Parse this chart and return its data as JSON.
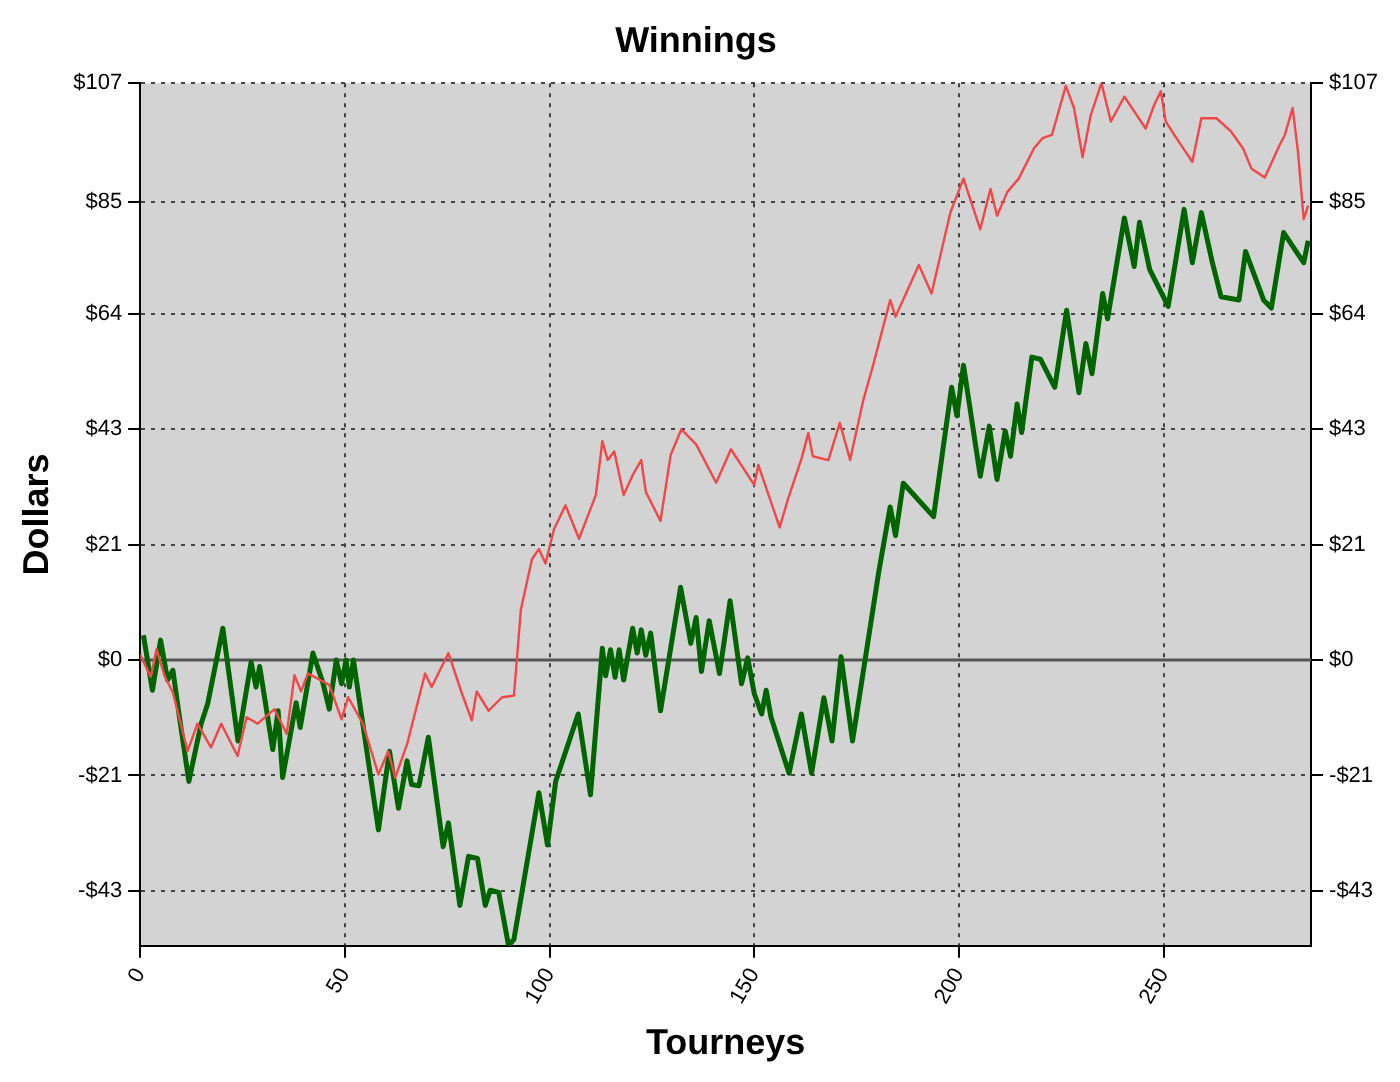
{
  "chart_data": {
    "type": "line",
    "title": "Winnings",
    "xlabel": "Tourneys",
    "ylabel": "Dollars",
    "xlim": [
      0,
      286
    ],
    "xticks": [
      0,
      50,
      100,
      150,
      200,
      250
    ],
    "ylim": [
      -53,
      107
    ],
    "yticks": [
      {
        "value": -42.8,
        "label": "-$43"
      },
      {
        "value": -21.4,
        "label": "-$21"
      },
      {
        "value": 0,
        "label": "$0"
      },
      {
        "value": 21.4,
        "label": "$21"
      },
      {
        "value": 42.8,
        "label": "$43"
      },
      {
        "value": 64.2,
        "label": "$64"
      },
      {
        "value": 85,
        "label": "$85"
      },
      {
        "value": 107,
        "label": "$107"
      }
    ],
    "y2lim": [
      -53,
      107
    ],
    "y2ticks": [
      {
        "value": -42.8,
        "label": "-$43"
      },
      {
        "value": -21.4,
        "label": "-$21"
      },
      {
        "value": 0,
        "label": "$0"
      },
      {
        "value": 21.4,
        "label": "$21"
      },
      {
        "value": 42.8,
        "label": "$43"
      },
      {
        "value": 64.2,
        "label": "$64"
      },
      {
        "value": 85,
        "label": "$85"
      },
      {
        "value": 107,
        "label": "$107"
      }
    ],
    "grid": true,
    "legend": false,
    "marker": "none",
    "line_style": "solid",
    "ref_lines": [
      {
        "axis": "y",
        "value": 0,
        "color": "#555555"
      }
    ],
    "series": [
      {
        "color": "#f04848",
        "x": [
          0,
          2.6,
          4,
          6,
          8,
          11.6,
          14,
          17.3,
          19.8,
          23.8,
          26,
          28.7,
          32.8,
          35.8,
          37.7,
          39.3,
          41,
          46.2,
          49.2,
          50.8,
          54.4,
          58.2,
          60.6,
          62.3,
          65.2,
          69.6,
          71.2,
          75.3,
          78.6,
          81,
          82.2,
          85.1,
          88.4,
          91.3,
          93,
          95.7,
          97.4,
          99,
          101.1,
          103.9,
          107.2,
          111.3,
          112.9,
          114.2,
          115.8,
          118.1,
          120.3,
          122.4,
          123.5,
          127.1,
          129.6,
          132.2,
          135.8,
          140.7,
          144.3,
          150,
          151,
          156.2,
          158.3,
          161.6,
          163.2,
          164.3,
          168.1,
          170.9,
          173.4,
          176.6,
          179.1,
          183.2,
          184.5,
          190.2,
          193.3,
          197.9,
          201.1,
          205.2,
          207.7,
          209.3,
          211.8,
          214.6,
          218.3,
          220.4,
          222.7,
          226.1,
          228.1,
          230.2,
          232.2,
          234.8,
          237.1,
          240.4,
          245.6,
          247.7,
          249.3,
          250.5,
          252.6,
          257,
          259.2,
          262.9,
          266.5,
          269.4,
          271.4,
          274.7,
          278.3,
          279.6,
          281.5,
          282.8,
          284.2,
          285.3
        ],
        "values": [
          1,
          -3.1,
          2,
          -3,
          -6,
          -16.9,
          -11.8,
          -16.2,
          -11.8,
          -17.8,
          -10.6,
          -11.8,
          -9.1,
          -13.7,
          -2.8,
          -5.8,
          -2.5,
          -4.6,
          -11,
          -6.9,
          -11.8,
          -21.2,
          -16.9,
          -21.8,
          -15.6,
          -2.5,
          -5,
          1.3,
          -6.2,
          -11.2,
          -5.8,
          -9.4,
          -6.9,
          -6.6,
          9.4,
          18.7,
          20.6,
          17.9,
          24.3,
          28.7,
          22.5,
          30.6,
          40.6,
          37.1,
          38.7,
          30.6,
          34.3,
          37.1,
          31.2,
          25.8,
          38.1,
          42.8,
          40,
          32.9,
          39.1,
          32.5,
          36.2,
          24.6,
          30,
          37.5,
          42.1,
          37.8,
          37.1,
          44,
          37.1,
          48.1,
          54.9,
          66.8,
          63.7,
          73.3,
          68,
          83,
          89.3,
          79.9,
          87.4,
          82.4,
          86.8,
          89.3,
          94.9,
          96.8,
          97.4,
          106.5,
          102.4,
          93.3,
          101.1,
          107,
          99.9,
          104.5,
          98.6,
          103,
          105.5,
          99.9,
          97.4,
          92.4,
          100.5,
          100.5,
          98,
          94.9,
          91.2,
          89.5,
          95.5,
          97.4,
          102.4,
          94.3,
          81.8,
          84.3
        ]
      },
      {
        "color": "#006400",
        "x": [
          0.8,
          3,
          5,
          6.7,
          8,
          9.6,
          11.9,
          14.9,
          16.5,
          20.2,
          23.9,
          27.1,
          28.3,
          29.2,
          32.4,
          33.7,
          34.8,
          38.1,
          39.1,
          42.2,
          44.6,
          46.2,
          47.9,
          49.2,
          50.3,
          51.1,
          52.1,
          58.2,
          60.9,
          63.1,
          65.2,
          66.3,
          68.1,
          70.4,
          74,
          75.3,
          78.1,
          80.2,
          82.4,
          84.3,
          85.5,
          87.6,
          90,
          91.3,
          97.4,
          99.5,
          101.5,
          107,
          110,
          112.9,
          113.7,
          114.9,
          116,
          117,
          118.1,
          120.3,
          121.4,
          122.4,
          123.5,
          124.7,
          127.1,
          132,
          134.5,
          135.8,
          137.1,
          139,
          141.5,
          144.1,
          146.9,
          148.4,
          150,
          151.8,
          152.9,
          154.1,
          158.5,
          161.5,
          164,
          167,
          169,
          171.2,
          174,
          180.4,
          183.2,
          184.5,
          186.4,
          193.8,
          198.2,
          199.5,
          201.1,
          205.2,
          207.4,
          209.3,
          211.3,
          212.6,
          214.2,
          215.3,
          217.8,
          219.9,
          223.4,
          226.3,
          229.3,
          231,
          232.5,
          235.1,
          236.3,
          240.4,
          242.8,
          244.1,
          246.6,
          251.1,
          255,
          257,
          259.2,
          261.9,
          264,
          268.4,
          270,
          274.4,
          276.3,
          279.3,
          284.2,
          285.3
        ],
        "values": [
          4.6,
          -5.6,
          3.7,
          -3.7,
          -1.9,
          -10.6,
          -22.5,
          -11.8,
          -8.1,
          5.9,
          -15,
          -0.4,
          -5,
          -1.2,
          -16.6,
          -9.4,
          -21.8,
          -7.9,
          -12.5,
          1.3,
          -4.1,
          -9.1,
          0,
          -4.4,
          0,
          -5,
          0,
          -31.5,
          -16.9,
          -27.5,
          -18.7,
          -23.1,
          -23.3,
          -14.3,
          -34.6,
          -30.2,
          -45.5,
          -36.4,
          -36.8,
          -45.5,
          -42.7,
          -43.1,
          -53,
          -51.8,
          -24.6,
          -34.3,
          -22.5,
          -10,
          -25,
          2.2,
          -2.9,
          1.9,
          -3.2,
          1.9,
          -3.7,
          5.9,
          1.3,
          5.6,
          0.9,
          5,
          -9.4,
          13.5,
          3.1,
          7.9,
          -2.1,
          7.3,
          -2.5,
          11,
          -4.4,
          0.4,
          -6.2,
          -10,
          -5.6,
          -10.6,
          -21,
          -10,
          -21,
          -7,
          -15,
          0.6,
          -15,
          16.3,
          28.4,
          23.1,
          32.8,
          26.6,
          50.6,
          45.3,
          54.7,
          34.1,
          43.4,
          33.5,
          42.5,
          37.8,
          47.5,
          42.2,
          56.2,
          55.8,
          50.6,
          64.9,
          49.6,
          58.7,
          53.1,
          68,
          63.3,
          82,
          73,
          81.2,
          72.4,
          65.6,
          83.6,
          73.7,
          83,
          73.7,
          67.4,
          66.8,
          75.8,
          66.8,
          65.3,
          79.3,
          73.7,
          77.8
        ]
      }
    ]
  }
}
